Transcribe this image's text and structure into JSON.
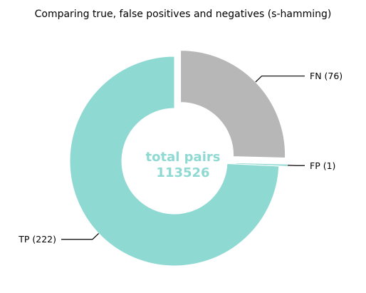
{
  "chart_data": {
    "type": "pie",
    "title": "Comparing true, false positives and negatives (s-hamming)",
    "donut": true,
    "start_angle_deg": 90,
    "direction": "clockwise",
    "slices": [
      {
        "label": "FN (76)",
        "value": 76,
        "color": "#b7b7b7",
        "exploded": true
      },
      {
        "label": "FP (1)",
        "value": 1,
        "color": "#8fd9d3",
        "exploded": true
      },
      {
        "label": "TP (222)",
        "value": 222,
        "color": "#8fd9d3",
        "exploded": false
      }
    ],
    "center_label": {
      "line1": "total pairs",
      "line2": "113526",
      "color": "#8fd9d3"
    }
  }
}
